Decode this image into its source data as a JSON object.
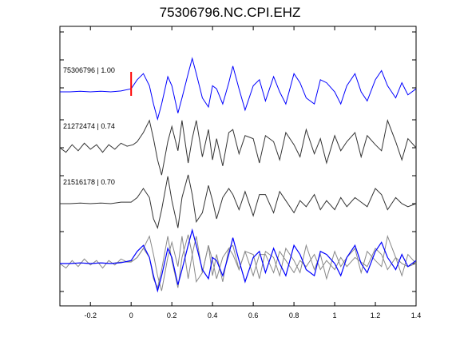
{
  "chart_data": {
    "type": "line",
    "title": "75306796.NC.CPI.EHZ",
    "xlabel": "",
    "ylabel": "",
    "xlim": [
      -0.35,
      1.4
    ],
    "x_ticks": [
      "-0.2",
      "0",
      "0.2",
      "0.4",
      "0.6",
      "0.8",
      "1",
      "1.2",
      "1.4"
    ],
    "pick_time": 0,
    "colors": {
      "primary": "#0000ff",
      "secondary": "#333333",
      "overlay": "#888888",
      "pick": "#ff0000"
    },
    "traces": [
      {
        "label": "75306796 | 1.00",
        "color": "#0000ff",
        "x": [
          -0.35,
          -0.3,
          -0.25,
          -0.2,
          -0.15,
          -0.1,
          -0.05,
          0,
          0.03,
          0.06,
          0.09,
          0.11,
          0.13,
          0.15,
          0.18,
          0.2,
          0.23,
          0.25,
          0.28,
          0.3,
          0.32,
          0.35,
          0.38,
          0.4,
          0.42,
          0.45,
          0.48,
          0.5,
          0.53,
          0.56,
          0.6,
          0.63,
          0.66,
          0.7,
          0.73,
          0.76,
          0.8,
          0.83,
          0.86,
          0.9,
          0.93,
          0.96,
          1,
          1.03,
          1.06,
          1.1,
          1.13,
          1.16,
          1.2,
          1.23,
          1.26,
          1.3,
          1.33,
          1.36,
          1.4
        ],
        "y": [
          0,
          0,
          0.02,
          0,
          0.02,
          0,
          0.03,
          0.1,
          0.4,
          0.6,
          0.2,
          -0.4,
          -0.9,
          -0.4,
          0.5,
          0.2,
          -0.7,
          -0.2,
          0.6,
          1.1,
          0.6,
          -0.2,
          -0.5,
          0.2,
          0.1,
          -0.4,
          0.3,
          0.85,
          0.1,
          -0.6,
          0.2,
          0.4,
          -0.3,
          0.5,
          0,
          -0.4,
          0.6,
          0.3,
          -0.2,
          -0.4,
          0.4,
          0.3,
          0,
          -0.4,
          0.2,
          0.6,
          0,
          -0.3,
          0.4,
          0.7,
          0.2,
          -0.2,
          0.3,
          -0.1,
          0.1
        ]
      },
      {
        "label": "21272474 | 0.74",
        "color": "#333333",
        "x": [
          -0.35,
          -0.32,
          -0.29,
          -0.26,
          -0.23,
          -0.2,
          -0.17,
          -0.14,
          -0.11,
          -0.08,
          -0.05,
          -0.02,
          0.01,
          0.03,
          0.06,
          0.09,
          0.11,
          0.13,
          0.15,
          0.18,
          0.2,
          0.23,
          0.25,
          0.28,
          0.3,
          0.32,
          0.35,
          0.38,
          0.4,
          0.42,
          0.45,
          0.48,
          0.5,
          0.53,
          0.56,
          0.6,
          0.63,
          0.66,
          0.7,
          0.73,
          0.76,
          0.8,
          0.83,
          0.86,
          0.9,
          0.93,
          0.96,
          1,
          1.03,
          1.06,
          1.1,
          1.13,
          1.16,
          1.2,
          1.23,
          1.26,
          1.3,
          1.33,
          1.36,
          1.4
        ],
        "y": [
          0,
          -0.15,
          0.1,
          -0.1,
          0.15,
          -0.05,
          0.1,
          -0.15,
          0.1,
          -0.05,
          0.15,
          0.05,
          0.1,
          0.2,
          0.5,
          0.9,
          0.3,
          -0.4,
          -0.9,
          0.2,
          0.7,
          -0.1,
          0.9,
          -0.5,
          0.3,
          0.9,
          -0.3,
          0.6,
          -0.4,
          0.3,
          -0.6,
          0.5,
          0.6,
          -0.2,
          0.4,
          0.3,
          -0.5,
          0.4,
          0.2,
          -0.4,
          0.5,
          0.1,
          -0.3,
          0.6,
          -0.2,
          0.3,
          -0.5,
          0.4,
          -0.1,
          0.2,
          0.5,
          -0.3,
          0.4,
          0.1,
          -0.1,
          0.9,
          0.2,
          -0.4,
          0.3,
          0
        ]
      },
      {
        "label": "21516178 | 0.70",
        "color": "#333333",
        "x": [
          -0.35,
          -0.3,
          -0.25,
          -0.2,
          -0.15,
          -0.1,
          -0.05,
          0,
          0.03,
          0.06,
          0.09,
          0.11,
          0.13,
          0.15,
          0.18,
          0.2,
          0.23,
          0.25,
          0.28,
          0.3,
          0.32,
          0.35,
          0.38,
          0.4,
          0.42,
          0.45,
          0.48,
          0.5,
          0.53,
          0.56,
          0.6,
          0.63,
          0.66,
          0.7,
          0.73,
          0.76,
          0.8,
          0.83,
          0.86,
          0.9,
          0.93,
          0.96,
          1,
          1.03,
          1.06,
          1.1,
          1.13,
          1.16,
          1.2,
          1.23,
          1.26,
          1.3,
          1.33,
          1.36,
          1.4
        ],
        "y": [
          0,
          0,
          0.02,
          0,
          0.02,
          0,
          0.05,
          0.05,
          0.2,
          0.5,
          0.2,
          -0.5,
          -0.8,
          -0.2,
          0.9,
          0.1,
          -0.8,
          0.2,
          0.95,
          0.3,
          -0.6,
          -0.3,
          0.6,
          0.1,
          -0.5,
          0.2,
          0.5,
          0.3,
          -0.2,
          0.4,
          -0.4,
          0.3,
          0.3,
          -0.3,
          0.4,
          0.1,
          -0.3,
          0.1,
          -0.1,
          0.3,
          -0.2,
          0.1,
          -0.2,
          0.2,
          -0.1,
          0.2,
          0.05,
          -0.1,
          0.5,
          0.3,
          -0.2,
          0.2,
          0,
          -0.1,
          0
        ]
      }
    ]
  }
}
